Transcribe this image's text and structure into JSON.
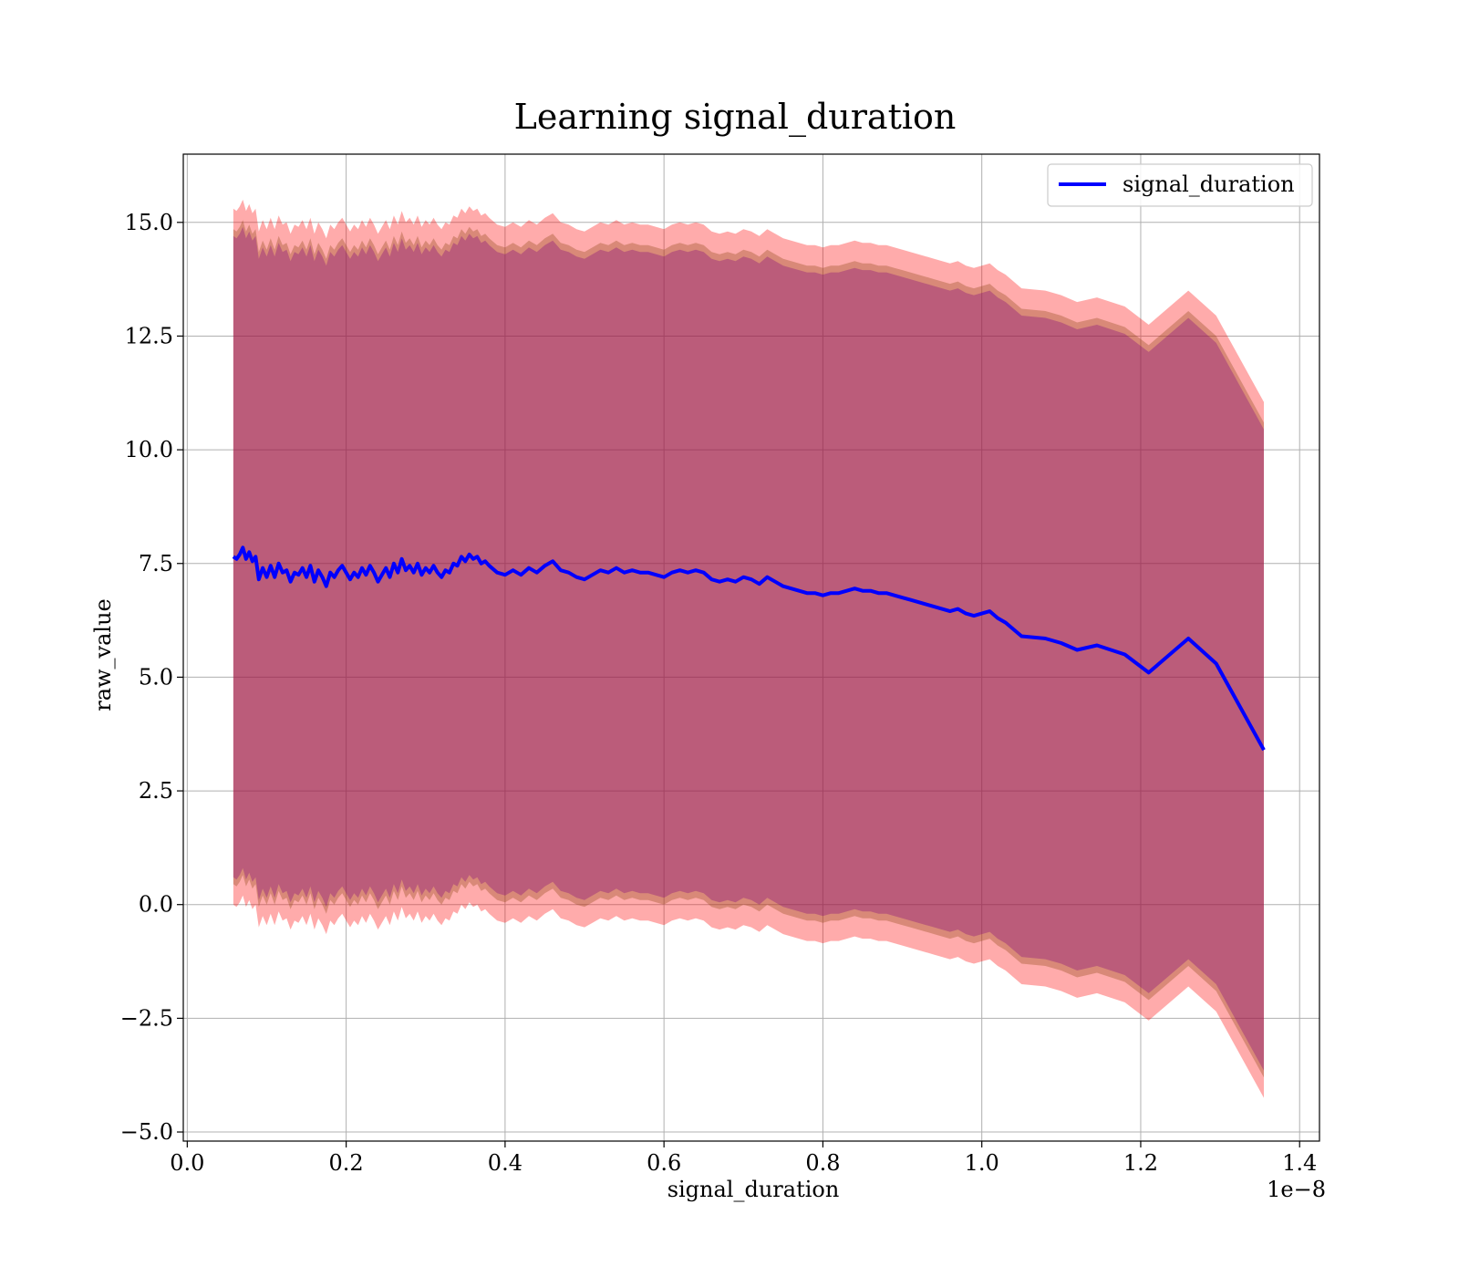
{
  "chart_data": {
    "type": "line",
    "title": "Learning signal_duration",
    "xlabel": "signal_duration",
    "ylabel": "raw_value",
    "x_offset_label": "1e−8",
    "xlim": [
      -0.005,
      1.425
    ],
    "ylim": [
      -5.2,
      16.5
    ],
    "x_ticks": [
      0.0,
      0.2,
      0.4,
      0.6,
      0.8,
      1.0,
      1.2,
      1.4
    ],
    "x_tick_labels": [
      "0.0",
      "0.2",
      "0.4",
      "0.6",
      "0.8",
      "1.0",
      "1.2",
      "1.4"
    ],
    "y_ticks": [
      -5.0,
      -2.5,
      0.0,
      2.5,
      5.0,
      7.5,
      10.0,
      12.5,
      15.0
    ],
    "y_tick_labels": [
      "−5.0",
      "−2.5",
      "0.0",
      "2.5",
      "5.0",
      "7.5",
      "10.0",
      "12.5",
      "15.0"
    ],
    "grid": true,
    "legend_position": "top-right",
    "colors": {
      "line": "#0000ff",
      "band_outer": "#ff0000",
      "band_middle": "#8b4513",
      "band_inner": "#800080",
      "grid": "#b0b0b0"
    },
    "band_widths": [
      7.65,
      7.2,
      7.05
    ],
    "series": [
      {
        "name": "signal_duration",
        "x": [
          0.058,
          0.062,
          0.066,
          0.07,
          0.074,
          0.078,
          0.082,
          0.086,
          0.09,
          0.095,
          0.1,
          0.105,
          0.11,
          0.115,
          0.12,
          0.125,
          0.13,
          0.135,
          0.14,
          0.145,
          0.15,
          0.155,
          0.16,
          0.165,
          0.17,
          0.175,
          0.18,
          0.185,
          0.19,
          0.195,
          0.2,
          0.205,
          0.21,
          0.215,
          0.22,
          0.225,
          0.23,
          0.235,
          0.24,
          0.245,
          0.25,
          0.255,
          0.26,
          0.265,
          0.27,
          0.275,
          0.28,
          0.285,
          0.29,
          0.295,
          0.3,
          0.305,
          0.31,
          0.315,
          0.32,
          0.325,
          0.33,
          0.335,
          0.34,
          0.345,
          0.35,
          0.355,
          0.36,
          0.365,
          0.37,
          0.375,
          0.38,
          0.39,
          0.4,
          0.41,
          0.42,
          0.43,
          0.44,
          0.45,
          0.46,
          0.47,
          0.48,
          0.49,
          0.5,
          0.51,
          0.52,
          0.53,
          0.54,
          0.55,
          0.56,
          0.57,
          0.58,
          0.59,
          0.6,
          0.61,
          0.62,
          0.63,
          0.64,
          0.65,
          0.66,
          0.67,
          0.68,
          0.69,
          0.7,
          0.71,
          0.72,
          0.73,
          0.74,
          0.75,
          0.76,
          0.77,
          0.78,
          0.79,
          0.8,
          0.81,
          0.82,
          0.83,
          0.84,
          0.85,
          0.86,
          0.87,
          0.88,
          0.89,
          0.9,
          0.91,
          0.92,
          0.93,
          0.94,
          0.95,
          0.96,
          0.97,
          0.98,
          0.99,
          1.0,
          1.01,
          1.02,
          1.03,
          1.05,
          1.08,
          1.1,
          1.12,
          1.145,
          1.18,
          1.21,
          1.26,
          1.295,
          1.355
        ],
        "y": [
          7.65,
          7.6,
          7.7,
          7.85,
          7.6,
          7.75,
          7.55,
          7.65,
          7.15,
          7.4,
          7.2,
          7.45,
          7.2,
          7.5,
          7.3,
          7.35,
          7.1,
          7.3,
          7.25,
          7.4,
          7.2,
          7.45,
          7.1,
          7.35,
          7.2,
          7.0,
          7.3,
          7.2,
          7.35,
          7.45,
          7.3,
          7.15,
          7.3,
          7.2,
          7.4,
          7.25,
          7.45,
          7.3,
          7.1,
          7.25,
          7.4,
          7.2,
          7.5,
          7.3,
          7.6,
          7.35,
          7.45,
          7.3,
          7.5,
          7.25,
          7.4,
          7.3,
          7.45,
          7.3,
          7.2,
          7.35,
          7.3,
          7.5,
          7.45,
          7.65,
          7.55,
          7.7,
          7.6,
          7.65,
          7.5,
          7.55,
          7.45,
          7.3,
          7.25,
          7.35,
          7.25,
          7.4,
          7.3,
          7.45,
          7.55,
          7.35,
          7.3,
          7.2,
          7.15,
          7.25,
          7.35,
          7.3,
          7.4,
          7.3,
          7.35,
          7.3,
          7.3,
          7.25,
          7.2,
          7.3,
          7.35,
          7.3,
          7.35,
          7.3,
          7.15,
          7.1,
          7.15,
          7.1,
          7.2,
          7.15,
          7.05,
          7.2,
          7.1,
          7.0,
          6.95,
          6.9,
          6.85,
          6.85,
          6.8,
          6.85,
          6.85,
          6.9,
          6.95,
          6.9,
          6.9,
          6.85,
          6.85,
          6.8,
          6.75,
          6.7,
          6.65,
          6.6,
          6.55,
          6.5,
          6.45,
          6.5,
          6.4,
          6.35,
          6.4,
          6.45,
          6.3,
          6.2,
          5.9,
          5.85,
          5.75,
          5.6,
          5.7,
          5.5,
          5.1,
          5.85,
          5.3,
          3.4
        ]
      }
    ]
  }
}
